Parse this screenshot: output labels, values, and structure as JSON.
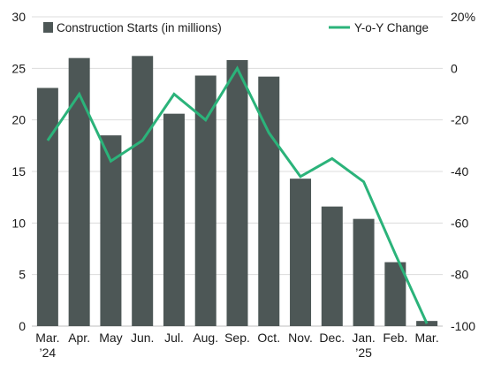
{
  "chart_data": {
    "type": "bar+line",
    "categories": [
      [
        "Mar.",
        "’24"
      ],
      [
        "Apr."
      ],
      [
        "May"
      ],
      [
        "Jun."
      ],
      [
        "Jul."
      ],
      [
        "Aug."
      ],
      [
        "Sep."
      ],
      [
        "Oct."
      ],
      [
        "Nov."
      ],
      [
        "Dec."
      ],
      [
        "Jan.",
        "’25"
      ],
      [
        "Feb."
      ],
      [
        "Mar."
      ]
    ],
    "series": [
      {
        "name": "Construction Starts (in millions)",
        "type": "bar",
        "axis": "left",
        "color": "#4d5756",
        "values": [
          23.1,
          26.0,
          18.5,
          26.2,
          20.6,
          24.3,
          25.8,
          24.2,
          14.3,
          11.6,
          10.4,
          6.2,
          0.5
        ]
      },
      {
        "name": "Y-o-Y Change",
        "type": "line",
        "axis": "right",
        "color": "#2bb37a",
        "values": [
          -28,
          -10,
          -36,
          -28,
          -10,
          -20,
          0,
          -25,
          -42,
          -35,
          -44,
          -72,
          -99
        ]
      }
    ],
    "y_left": {
      "ticks": [
        "0",
        "5",
        "10",
        "15",
        "20",
        "25",
        "30"
      ],
      "ylim": [
        0,
        30
      ]
    },
    "y_right": {
      "ticks": [
        "-100",
        "-80",
        "-60",
        "-40",
        "-20",
        "0",
        "20%"
      ],
      "ylim": [
        -100,
        20
      ]
    },
    "grid": "horizontal",
    "legend": "top"
  }
}
